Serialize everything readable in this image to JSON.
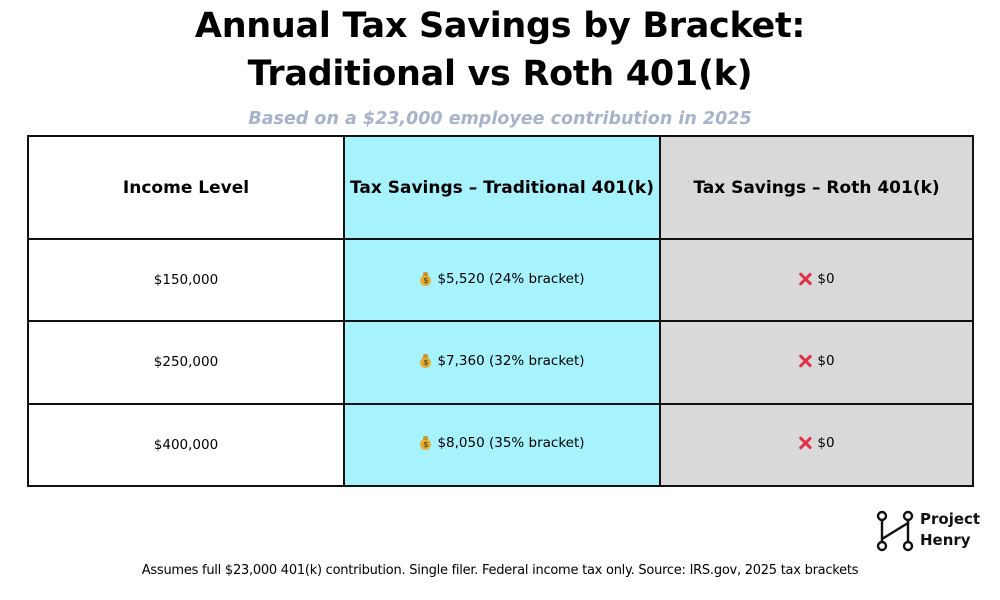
{
  "title": {
    "line1": "Annual Tax Savings by Bracket:",
    "line2": "Traditional vs Roth 401(k)"
  },
  "subtitle": "Based on a $23,000 employee contribution in 2025",
  "table": {
    "headers": [
      "Income Level",
      "Tax Savings – Traditional 401(k)",
      "Tax Savings – Roth 401(k)"
    ],
    "rows": [
      {
        "income": "$150,000",
        "traditional": "$5,520 (24% bracket)",
        "roth": "$0"
      },
      {
        "income": "$250,000",
        "traditional": "$7,360 (32% bracket)",
        "roth": "$0"
      },
      {
        "income": "$400,000",
        "traditional": "$8,050 (35% bracket)",
        "roth": "$0"
      }
    ],
    "traditional_icon": "money-bag-icon",
    "roth_icon": "red-x-icon"
  },
  "colors": {
    "traditional_column": "#a6f3fd",
    "roth_column": "#d9d9d9",
    "subtitle": "#a7b3cb",
    "x_mark": "#e0304a"
  },
  "logo": {
    "line1": "Project",
    "line2": "Henry",
    "icon": "project-henry-logo-icon"
  },
  "footnote": "Assumes full $23,000 401(k) contribution. Single filer. Federal income tax only. Source: IRS.gov, 2025 tax brackets"
}
